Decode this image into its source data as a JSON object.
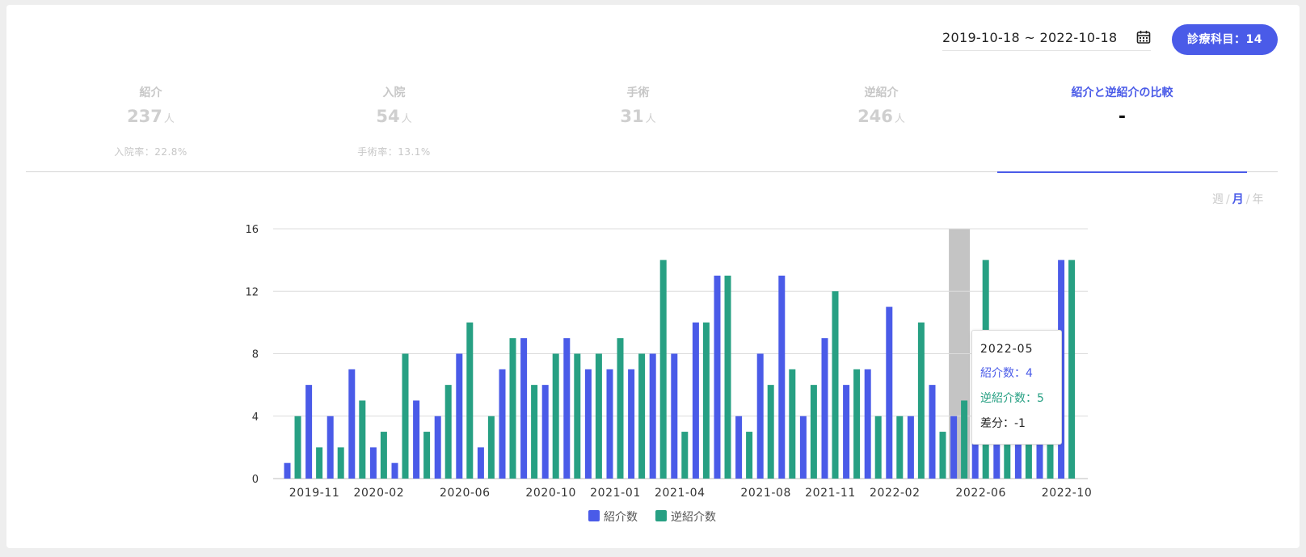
{
  "header": {
    "date_range": "2019-10-18 ~ 2022-10-18",
    "calendar_icon": "calendar-icon",
    "department_button": "診療科目：14"
  },
  "tabs": [
    {
      "label": "紹介",
      "value": "237",
      "unit": "人",
      "rate": "入院率：22.8%"
    },
    {
      "label": "入院",
      "value": "54",
      "unit": "人",
      "rate": "手術率：13.1%"
    },
    {
      "label": "手術",
      "value": "31",
      "unit": "人",
      "rate": ""
    },
    {
      "label": "逆紹介",
      "value": "246",
      "unit": "人",
      "rate": ""
    },
    {
      "label": "紹介と逆紹介の比較",
      "value": "-",
      "unit": "",
      "rate": ""
    }
  ],
  "active_tab": 4,
  "period": {
    "week": "週",
    "month": "月",
    "year": "年",
    "separator": "/",
    "selected": "月"
  },
  "colors": {
    "referral": "#4a5be8",
    "reverse": "#27a083",
    "highlight": "#c4c4c4",
    "accent": "#4a5be8"
  },
  "tooltip": {
    "title": "2022-05",
    "referral": "紹介数：4",
    "reverse": "逆紹介数：5",
    "diff": "差分：-1"
  },
  "chart_data": {
    "type": "bar",
    "categories": [
      "2019-10",
      "2019-11",
      "2019-12",
      "2020-01",
      "2020-02",
      "2020-03",
      "2020-04",
      "2020-05",
      "2020-06",
      "2020-07",
      "2020-08",
      "2020-09",
      "2020-10",
      "2020-11",
      "2020-12",
      "2021-01",
      "2021-02",
      "2021-03",
      "2021-04",
      "2021-05",
      "2021-06",
      "2021-07",
      "2021-08",
      "2021-09",
      "2021-10",
      "2021-11",
      "2021-12",
      "2022-01",
      "2022-02",
      "2022-03",
      "2022-04",
      "2022-05",
      "2022-06",
      "2022-07",
      "2022-08",
      "2022-09",
      "2022-10"
    ],
    "series": [
      {
        "name": "紹介数",
        "values": [
          1,
          6,
          4,
          7,
          2,
          1,
          5,
          4,
          8,
          2,
          7,
          9,
          6,
          9,
          7,
          7,
          7,
          8,
          8,
          10,
          13,
          4,
          8,
          13,
          4,
          9,
          6,
          7,
          11,
          4,
          6,
          4,
          6,
          5,
          5,
          5,
          14
        ]
      },
      {
        "name": "逆紹介数",
        "values": [
          4,
          2,
          2,
          5,
          3,
          8,
          3,
          6,
          10,
          4,
          9,
          6,
          8,
          8,
          8,
          9,
          8,
          14,
          3,
          10,
          13,
          3,
          6,
          7,
          6,
          12,
          7,
          4,
          4,
          10,
          3,
          5,
          14,
          5,
          5,
          5,
          14
        ]
      }
    ],
    "xtick_labels": [
      "2019-11",
      "2020-02",
      "2020-06",
      "2020-10",
      "2021-01",
      "2021-04",
      "2021-08",
      "2021-11",
      "2022-02",
      "2022-06",
      "2022-10"
    ],
    "yticks": [
      0,
      4,
      8,
      12,
      16
    ],
    "ylim": [
      0,
      16
    ],
    "highlighted_category": "2022-05",
    "legend": [
      "紹介数",
      "逆紹介数"
    ],
    "legend_position": "bottom",
    "grid": true
  }
}
